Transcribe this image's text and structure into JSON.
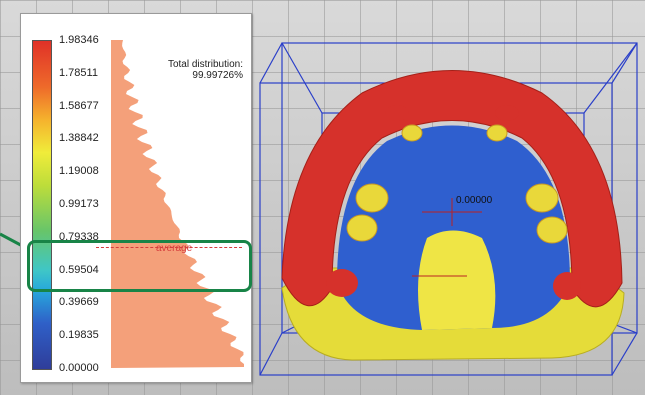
{
  "colorbar": {
    "ticks": [
      "1.98346",
      "1.78511",
      "1.58677",
      "1.38842",
      "1.19008",
      "0.99173",
      "0.79338",
      "0.59504",
      "0.39669",
      "0.19835",
      "0.00000"
    ]
  },
  "histogram": {
    "total_label": "Total distribution:",
    "total_value": "99.99726%",
    "average_label": "average"
  },
  "viewport": {
    "center_value": "0.00000"
  },
  "colors": {
    "highlight": "#188447",
    "average_line": "#d63c3c",
    "histogram_fill": "#f4a07a",
    "bounding_box": "#2a3fc9"
  }
}
